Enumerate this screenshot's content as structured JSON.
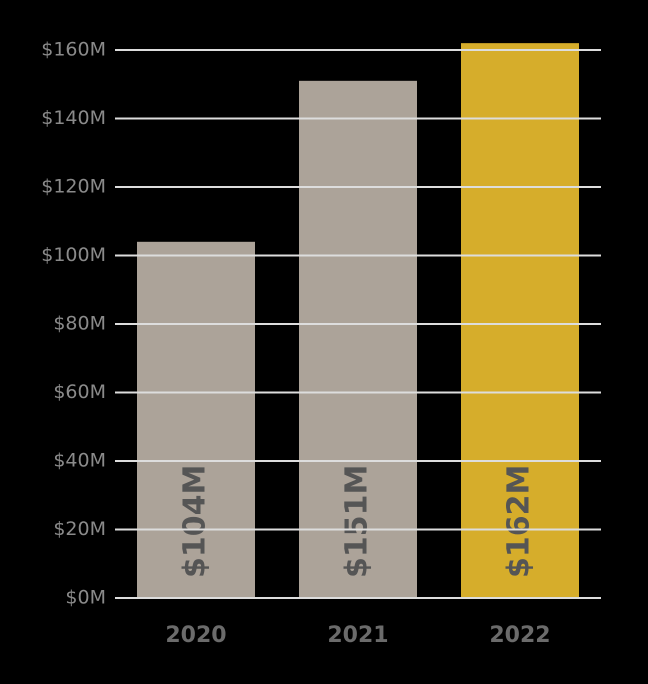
{
  "chart_data": {
    "type": "bar",
    "categories": [
      "2020",
      "2021",
      "2022"
    ],
    "values": [
      104,
      151,
      162
    ],
    "value_labels": [
      "$104M",
      "$151M",
      "$162M"
    ],
    "colors": [
      "#aca399",
      "#aca399",
      "#d6ad2b"
    ],
    "ylim": [
      0,
      160
    ],
    "yticks": [
      {
        "value": 0,
        "label": "$0M"
      },
      {
        "value": 20,
        "label": "$20M"
      },
      {
        "value": 40,
        "label": "$40M"
      },
      {
        "value": 60,
        "label": "$60M"
      },
      {
        "value": 80,
        "label": "$80M"
      },
      {
        "value": 100,
        "label": "$100M"
      },
      {
        "value": 120,
        "label": "$120M"
      },
      {
        "value": 140,
        "label": "$140M"
      },
      {
        "value": 160,
        "label": "$160M"
      }
    ],
    "grid": true
  }
}
